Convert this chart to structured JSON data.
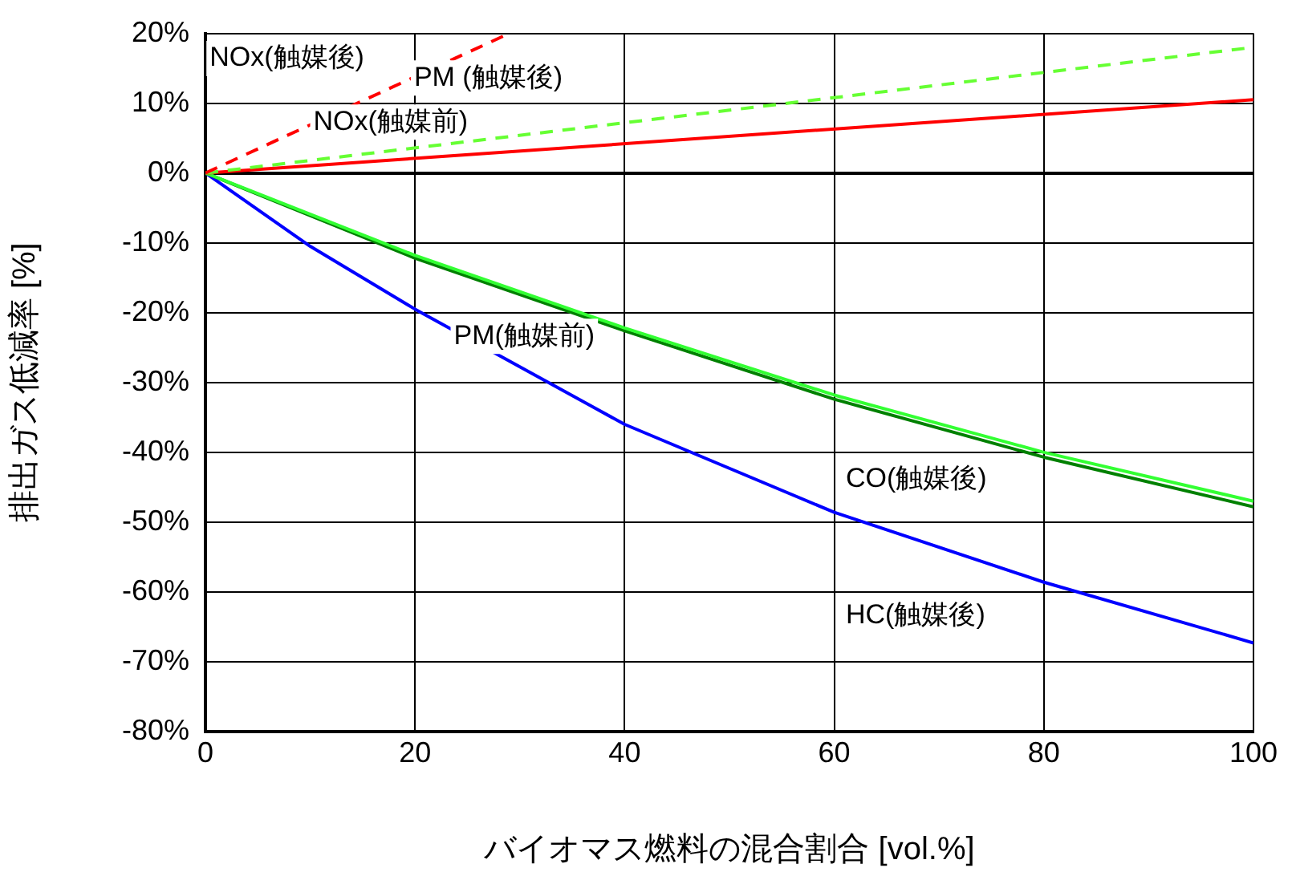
{
  "chart_data": {
    "type": "line",
    "xlabel": "バイオマス燃料の混合割合 [vol.%]",
    "ylabel": "排出ガス低減率 [%]",
    "xlim": [
      0,
      100
    ],
    "xticks": [
      0,
      20,
      40,
      60,
      80,
      100
    ],
    "ylim": [
      -80,
      20
    ],
    "yticks": [
      {
        "value": 20,
        "label": "20%"
      },
      {
        "value": 10,
        "label": "10%"
      },
      {
        "value": 0,
        "label": "0%"
      },
      {
        "value": -10,
        "label": "-10%"
      },
      {
        "value": -20,
        "label": "-20%"
      },
      {
        "value": -30,
        "label": "-30%"
      },
      {
        "value": -40,
        "label": "-40%"
      },
      {
        "value": -50,
        "label": "-50%"
      },
      {
        "value": -60,
        "label": "-60%"
      },
      {
        "value": -70,
        "label": "-70%"
      },
      {
        "value": -80,
        "label": "-80%"
      }
    ],
    "grid": true,
    "legend": false,
    "marker": "none",
    "series": [
      {
        "color": "#ff0000",
        "line_style": "dashed",
        "x": [
          0,
          29
        ],
        "values": [
          0,
          20
        ]
      },
      {
        "color": "#66ff33",
        "line_style": "dashed",
        "x": [
          0,
          100
        ],
        "values": [
          0,
          18
        ]
      },
      {
        "color": "#ff0000",
        "line_style": "solid",
        "x": [
          0,
          100
        ],
        "values": [
          0,
          10.5
        ]
      },
      {
        "color": "#33ff33",
        "line_style": "solid",
        "x": [
          0,
          20,
          40,
          60,
          80,
          100
        ],
        "values": [
          0,
          -11.8,
          -22.2,
          -31.8,
          -40,
          -47
        ]
      },
      {
        "color": "#008000",
        "line_style": "solid",
        "x": [
          0,
          20,
          40,
          60,
          80,
          100
        ],
        "values": [
          0,
          -12.2,
          -22.6,
          -32.4,
          -40.7,
          -47.8
        ]
      },
      {
        "color": "#0000ff",
        "line_style": "solid",
        "x": [
          0,
          10,
          20,
          40,
          60,
          80,
          100
        ],
        "values": [
          0,
          -10.5,
          -19.5,
          -36,
          -48.6,
          -58.6,
          -67.3
        ]
      }
    ],
    "annotations": [
      "NOx(触媒後)",
      {
        "text": "PM (触媒後)",
        "x": 19.9,
        "y": 13.6
      },
      {
        "text": "NOx(触媒前)",
        "x": 10.3,
        "y": 7.3
      },
      {
        "text": "PM(触媒前)",
        "x": 23.7,
        "y": -23.4
      },
      "CO(触媒後)",
      "HC(触媒後)"
    ]
  }
}
